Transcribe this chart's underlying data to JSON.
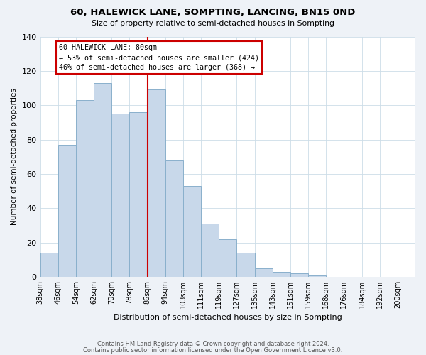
{
  "title": "60, HALEWICK LANE, SOMPTING, LANCING, BN15 0ND",
  "subtitle": "Size of property relative to semi-detached houses in Sompting",
  "xlabel": "Distribution of semi-detached houses by size in Sompting",
  "ylabel": "Number of semi-detached properties",
  "bin_labels": [
    "38sqm",
    "46sqm",
    "54sqm",
    "62sqm",
    "70sqm",
    "78sqm",
    "86sqm",
    "94sqm",
    "103sqm",
    "111sqm",
    "119sqm",
    "127sqm",
    "135sqm",
    "143sqm",
    "151sqm",
    "159sqm",
    "168sqm",
    "176sqm",
    "184sqm",
    "192sqm",
    "200sqm"
  ],
  "counts": [
    14,
    77,
    103,
    113,
    95,
    96,
    109,
    68,
    53,
    31,
    22,
    14,
    5,
    3,
    2,
    1,
    0,
    0,
    0,
    0
  ],
  "bar_color": "#c8d8ea",
  "bar_edge_color": "#8ab0cc",
  "property_bin_index": 5,
  "property_label": "60 HALEWICK LANE: 80sqm",
  "annotation_line1": "← 53% of semi-detached houses are smaller (424)",
  "annotation_line2": "46% of semi-detached houses are larger (368) →",
  "annotation_box_color": "#ffffff",
  "annotation_box_edgecolor": "#cc0000",
  "line_color": "#cc0000",
  "ylim": [
    0,
    140
  ],
  "yticks": [
    0,
    20,
    40,
    60,
    80,
    100,
    120,
    140
  ],
  "footer_line1": "Contains HM Land Registry data © Crown copyright and database right 2024.",
  "footer_line2": "Contains public sector information licensed under the Open Government Licence v3.0.",
  "background_color": "#eef2f7",
  "plot_background": "#ffffff",
  "grid_color": "#ccdde8"
}
